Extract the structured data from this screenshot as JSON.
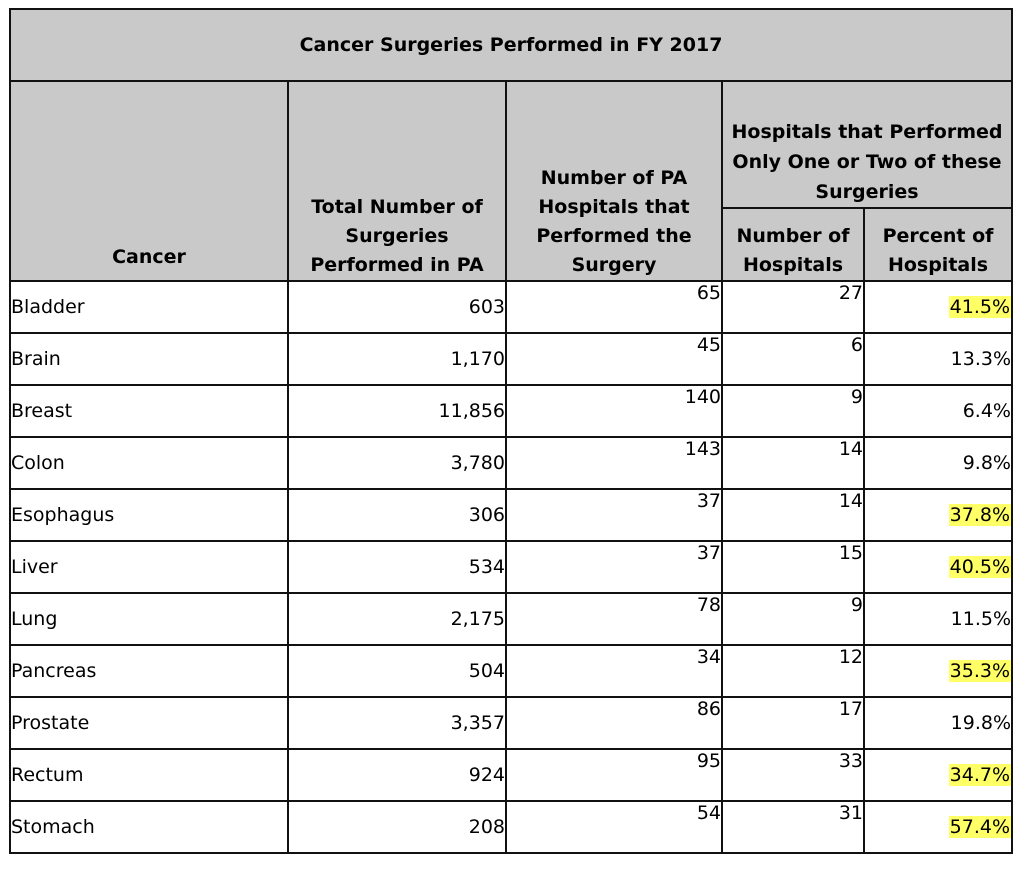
{
  "table": {
    "title": "Cancer Surgeries Performed in FY 2017",
    "headers": {
      "cancer": "Cancer",
      "total": "Total Number of Surgeries Performed in PA",
      "hospitals": "Number of PA Hospitals that Performed the Surgery",
      "group": "Hospitals that Performed Only One or Two of these Surgeries",
      "num_hospitals": "Number of Hospitals",
      "pct_hospitals": "Percent of Hospitals"
    },
    "highlight_color": "#ffff66",
    "header_background": "#c9c9c9",
    "rows": [
      {
        "cancer": "Bladder",
        "total": "603",
        "hospitals": "65",
        "num": "27",
        "pct": "41.5%",
        "highlight": true
      },
      {
        "cancer": "Brain",
        "total": "1,170",
        "hospitals": "45",
        "num": "6",
        "pct": "13.3%",
        "highlight": false
      },
      {
        "cancer": "Breast",
        "total": "11,856",
        "hospitals": "140",
        "num": "9",
        "pct": "6.4%",
        "highlight": false
      },
      {
        "cancer": "Colon",
        "total": "3,780",
        "hospitals": "143",
        "num": "14",
        "pct": "9.8%",
        "highlight": false
      },
      {
        "cancer": "Esophagus",
        "total": "306",
        "hospitals": "37",
        "num": "14",
        "pct": "37.8%",
        "highlight": true
      },
      {
        "cancer": "Liver",
        "total": "534",
        "hospitals": "37",
        "num": "15",
        "pct": "40.5%",
        "highlight": true
      },
      {
        "cancer": "Lung",
        "total": "2,175",
        "hospitals": "78",
        "num": "9",
        "pct": "11.5%",
        "highlight": false
      },
      {
        "cancer": "Pancreas",
        "total": "504",
        "hospitals": "34",
        "num": "12",
        "pct": "35.3%",
        "highlight": true
      },
      {
        "cancer": "Prostate",
        "total": "3,357",
        "hospitals": "86",
        "num": "17",
        "pct": "19.8%",
        "highlight": false
      },
      {
        "cancer": "Rectum",
        "total": "924",
        "hospitals": "95",
        "num": "33",
        "pct": "34.7%",
        "highlight": true
      },
      {
        "cancer": "Stomach",
        "total": "208",
        "hospitals": "54",
        "num": "31",
        "pct": "57.4%",
        "highlight": true
      }
    ]
  }
}
